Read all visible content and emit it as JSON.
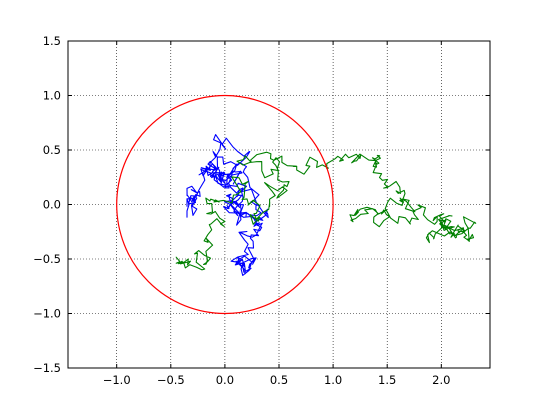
{
  "chart_data": {
    "type": "line",
    "title": "",
    "xlabel": "",
    "ylabel": "",
    "xlim": [
      -1.45,
      2.45
    ],
    "ylim": [
      -1.5,
      1.5
    ],
    "grid": true,
    "grid_style": "dotted",
    "x_ticks": [
      -1.0,
      -0.5,
      0.0,
      0.5,
      1.0,
      1.5,
      2.0
    ],
    "x_tick_labels": [
      "−1.0",
      "−0.5",
      "0.0",
      "0.5",
      "1.0",
      "1.5",
      "2.0"
    ],
    "y_ticks": [
      -1.5,
      -1.0,
      -0.5,
      0.0,
      0.5,
      1.0,
      1.5
    ],
    "y_tick_labels": [
      "−1.5",
      "−1.0",
      "−0.5",
      "0.0",
      "0.5",
      "1.0",
      "1.5"
    ],
    "circle": {
      "cx": 0.0,
      "cy": 0.0,
      "r": 1.0,
      "color": "#ff0000"
    },
    "series": [
      {
        "color": "#0000ff",
        "walk": {
          "start": [
            -0.35,
            -0.12
          ],
          "checkpoints": [
            [
              -0.25,
              -0.03
            ],
            [
              -0.05,
              0.55
            ],
            [
              -0.12,
              0.3
            ],
            [
              0.25,
              0.05
            ],
            [
              0.12,
              -0.5
            ],
            [
              0.25,
              -0.6
            ],
            [
              0.2,
              0.35
            ],
            [
              0.0,
              0.25
            ],
            [
              0.15,
              -0.1
            ],
            [
              0.05,
              0.05
            ]
          ],
          "steps_per_leg": 30,
          "step_noise": 0.07,
          "bounds": [
            -0.35,
            0.4,
            -0.65,
            0.7
          ],
          "seed": 7
        }
      },
      {
        "color": "#008000",
        "walk": {
          "start": [
            -0.45,
            -0.48
          ],
          "checkpoints": [
            [
              -0.3,
              -0.45
            ],
            [
              -0.1,
              -0.2
            ],
            [
              0.1,
              0.2
            ],
            [
              0.3,
              -0.1
            ],
            [
              0.55,
              0.15
            ],
            [
              0.15,
              0.45
            ],
            [
              0.8,
              0.4
            ],
            [
              1.3,
              0.45
            ],
            [
              1.45,
              0.25
            ],
            [
              1.6,
              0.05
            ],
            [
              1.2,
              -0.05
            ],
            [
              1.55,
              -0.05
            ],
            [
              1.95,
              -0.15
            ],
            [
              2.1,
              -0.3
            ],
            [
              2.3,
              -0.12
            ],
            [
              2.0,
              -0.25
            ],
            [
              2.1,
              -0.1
            ]
          ],
          "steps_per_leg": 20,
          "step_noise": 0.06,
          "bounds": [
            -0.45,
            2.35,
            -0.6,
            0.5
          ],
          "seed": 13
        }
      }
    ]
  }
}
